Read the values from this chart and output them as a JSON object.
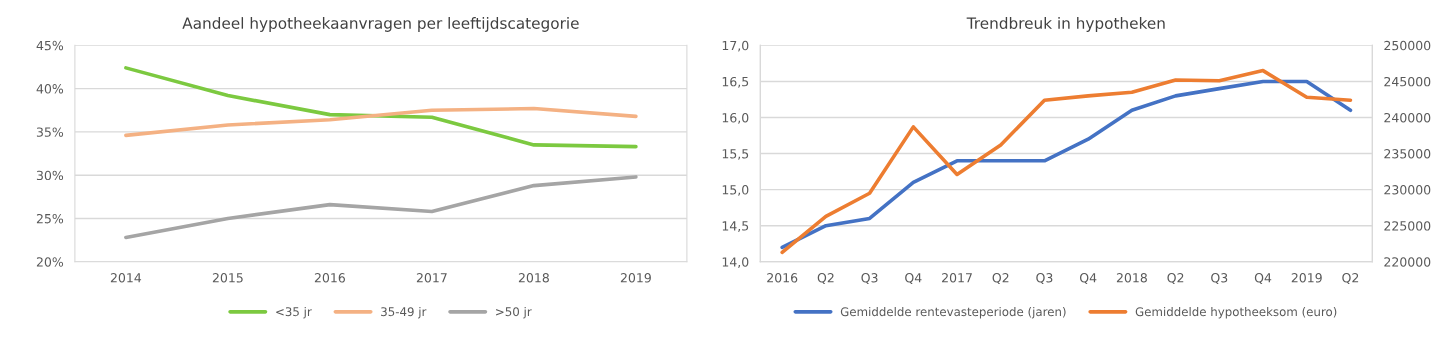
{
  "chart_data": [
    {
      "type": "line",
      "title": "Aandeel hypotheekaanvragen per leeftijdscategorie",
      "categories": [
        "2014",
        "2015",
        "2016",
        "2017",
        "2018",
        "2019"
      ],
      "series": [
        {
          "name": "<35 jr",
          "color": "#7cc940",
          "values": [
            42.4,
            39.2,
            37.0,
            36.7,
            33.5,
            33.3
          ]
        },
        {
          "name": "35-49 jr",
          "color": "#f4b183",
          "values": [
            34.6,
            35.8,
            36.4,
            37.5,
            37.7,
            36.8
          ]
        },
        {
          "name": ">50 jr",
          "color": "#a5a5a5",
          "values": [
            22.8,
            25.0,
            26.6,
            25.8,
            28.8,
            29.8
          ]
        }
      ],
      "ylim": [
        20,
        45
      ],
      "yticks": [
        {
          "value": 20,
          "label": "20%"
        },
        {
          "value": 25,
          "label": "25%"
        },
        {
          "value": 30,
          "label": "30%"
        },
        {
          "value": 35,
          "label": "35%"
        },
        {
          "value": 40,
          "label": "40%"
        },
        {
          "value": 45,
          "label": "45%"
        }
      ],
      "grid": "y",
      "legend": "bottom",
      "marker": "none",
      "line_style": "solid"
    },
    {
      "type": "line",
      "title": "Trendbreuk in hypotheken",
      "categories": [
        "2016",
        "Q2",
        "Q3",
        "Q4",
        "2017",
        "Q2",
        "Q3",
        "Q4",
        "2018",
        "Q2",
        "Q3",
        "Q4",
        "2019",
        "Q2"
      ],
      "series": [
        {
          "name": "Gemiddelde rentevasteperiode (jaren)",
          "color": "#4472c4",
          "values": [
            14.2,
            14.5,
            14.6,
            15.1,
            15.4,
            15.4,
            15.4,
            15.7,
            16.1,
            16.3,
            16.4,
            16.5,
            16.5,
            16.1
          ]
        },
        {
          "name": "Gemiddelde hypotheeksom (euro)",
          "color": "#ed7d31",
          "axis": "y2",
          "values": [
            221300,
            226300,
            229500,
            238700,
            232100,
            236200,
            242400,
            243000,
            243500,
            245200,
            245100,
            246500,
            242800,
            242400
          ]
        }
      ],
      "ylim": [
        14.0,
        17.0
      ],
      "yticks": [
        {
          "value": 14.0,
          "label": "14,0"
        },
        {
          "value": 14.5,
          "label": "14,5"
        },
        {
          "value": 15.0,
          "label": "15,0"
        },
        {
          "value": 15.5,
          "label": "15,5"
        },
        {
          "value": 16.0,
          "label": "16,0"
        },
        {
          "value": 16.5,
          "label": "16,5"
        },
        {
          "value": 17.0,
          "label": "17,0"
        }
      ],
      "y2lim": [
        220000,
        250000
      ],
      "y2ticks": [
        220000,
        225000,
        230000,
        235000,
        240000,
        245000,
        250000
      ],
      "grid": "y",
      "legend": "bottom",
      "marker": "none",
      "line_style": "solid"
    }
  ]
}
